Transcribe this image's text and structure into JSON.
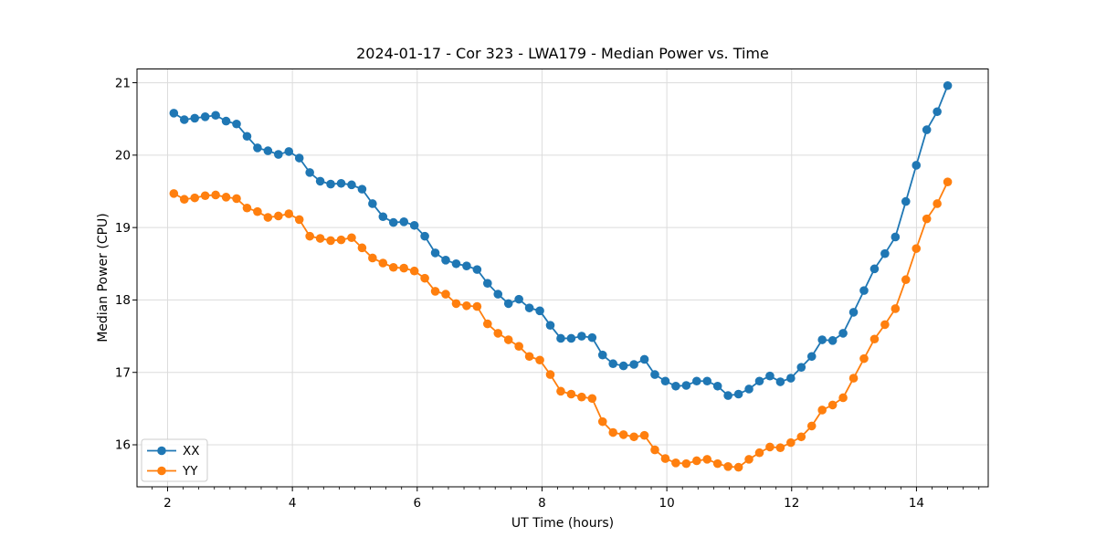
{
  "title": "2024-01-17 - Cor 323 - LWA179 - Median Power vs. Time",
  "chart_data": {
    "type": "line",
    "title": "2024-01-17 - Cor 323 - LWA179 - Median Power vs. Time",
    "xlabel": "UT Time (hours)",
    "ylabel": "Median Power (CPU)",
    "xlim": [
      1.51,
      15.15
    ],
    "ylim": [
      15.42,
      21.19
    ],
    "xticks": [
      2,
      4,
      6,
      8,
      10,
      12,
      14
    ],
    "yticks": [
      16,
      17,
      18,
      19,
      20,
      21
    ],
    "x_minor_tick_step": 0.25,
    "grid": true,
    "grid_color": "#dcdcdc",
    "legend_position": "lower left",
    "marker": "o",
    "x_start": 2.1,
    "x_end": 14.5,
    "n_points": 75,
    "series": [
      {
        "name": "XX",
        "color": "#1f77b4",
        "values": [
          20.58,
          20.49,
          20.51,
          20.53,
          20.55,
          20.47,
          20.43,
          20.26,
          20.1,
          20.06,
          20.01,
          20.05,
          19.96,
          19.76,
          19.64,
          19.6,
          19.61,
          19.59,
          19.53,
          19.33,
          19.15,
          19.07,
          19.08,
          19.03,
          18.88,
          18.65,
          18.55,
          18.5,
          18.47,
          18.42,
          18.23,
          18.08,
          17.95,
          18.01,
          17.89,
          17.85,
          17.65,
          17.47,
          17.47,
          17.5,
          17.48,
          17.24,
          17.12,
          17.09,
          17.11,
          17.18,
          16.97,
          16.88,
          16.81,
          16.82,
          16.88,
          16.88,
          16.81,
          16.68,
          16.7,
          16.77,
          16.88,
          16.95,
          16.87,
          16.92,
          17.07,
          17.22,
          17.45,
          17.44,
          17.54,
          17.83,
          18.13,
          18.43,
          18.64,
          18.87,
          19.36,
          19.86,
          20.35,
          20.6,
          20.96
        ]
      },
      {
        "name": "YY",
        "color": "#ff7f0e",
        "values": [
          19.47,
          19.39,
          19.41,
          19.44,
          19.45,
          19.42,
          19.4,
          19.27,
          19.22,
          19.14,
          19.16,
          19.19,
          19.11,
          18.88,
          18.85,
          18.82,
          18.83,
          18.86,
          18.72,
          18.58,
          18.51,
          18.45,
          18.44,
          18.4,
          18.3,
          18.12,
          18.08,
          17.95,
          17.92,
          17.91,
          17.67,
          17.54,
          17.45,
          17.36,
          17.22,
          17.17,
          16.97,
          16.74,
          16.7,
          16.66,
          16.64,
          16.32,
          16.17,
          16.14,
          16.11,
          16.13,
          15.93,
          15.81,
          15.75,
          15.74,
          15.78,
          15.8,
          15.74,
          15.7,
          15.69,
          15.8,
          15.89,
          15.97,
          15.96,
          16.03,
          16.11,
          16.26,
          16.48,
          16.55,
          16.65,
          16.92,
          17.19,
          17.46,
          17.66,
          17.88,
          18.28,
          18.71,
          19.12,
          19.33,
          19.63
        ]
      }
    ]
  }
}
